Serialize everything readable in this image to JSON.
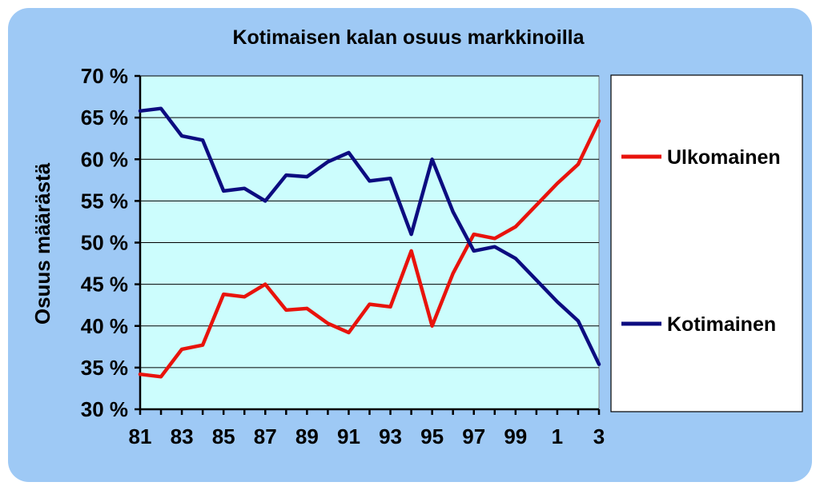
{
  "chart_data": {
    "type": "line",
    "title": "Kotimaisen kalan osuus markkinoilla",
    "ylabel": "Osuus määrästä",
    "xlabel": "",
    "x": [
      81,
      82,
      83,
      84,
      85,
      86,
      87,
      88,
      89,
      90,
      91,
      92,
      93,
      94,
      95,
      96,
      97,
      98,
      99,
      100,
      101,
      102,
      103
    ],
    "x_tick_labels": [
      "81",
      "83",
      "85",
      "87",
      "89",
      "91",
      "93",
      "95",
      "97",
      "99",
      "1",
      "3"
    ],
    "y_tick_labels": [
      "30 %",
      "35 %",
      "40 %",
      "45 %",
      "50 %",
      "55 %",
      "60 %",
      "65 %",
      "70 %"
    ],
    "ylim": [
      30,
      70
    ],
    "y_ticks": [
      30,
      35,
      40,
      45,
      50,
      55,
      60,
      65,
      70
    ],
    "grid": "horizontal",
    "legend": "right",
    "series": [
      {
        "name": "Ulkomainen",
        "color": "#e8130c",
        "values": [
          34.2,
          33.9,
          37.2,
          37.7,
          43.8,
          43.5,
          45.0,
          41.9,
          42.1,
          40.3,
          39.2,
          42.6,
          42.3,
          49.0,
          40.0,
          46.3,
          51.0,
          50.5,
          51.9,
          54.5,
          57.1,
          59.4,
          64.6
        ]
      },
      {
        "name": "Kotimainen",
        "color": "#0c0c80",
        "values": [
          65.8,
          66.1,
          62.8,
          62.3,
          56.2,
          56.5,
          55.0,
          58.1,
          57.9,
          59.7,
          60.8,
          57.4,
          57.7,
          51.0,
          60.0,
          53.7,
          49.0,
          49.5,
          48.1,
          45.5,
          42.9,
          40.6,
          35.4
        ]
      }
    ],
    "colors": {
      "background": "#9ec9f5",
      "plot_area": "#ccfdfd",
      "legend_box": "#ffffff"
    }
  }
}
